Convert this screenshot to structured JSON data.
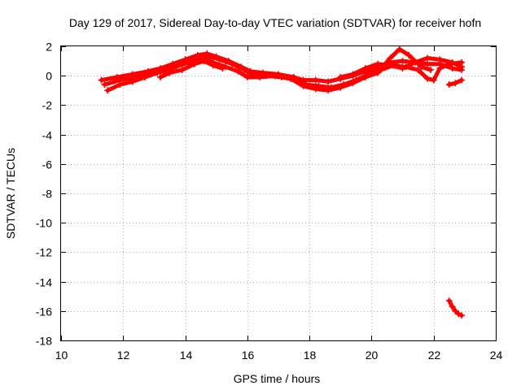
{
  "chart_data": {
    "type": "scatter",
    "title": "Day 129 of 2017, Sidereal Day-to-day VTEC variation (SDTVAR) for receiver hofn",
    "xlabel": "GPS time / hours",
    "ylabel": "SDTVAR / TECUs",
    "xlim": [
      10,
      24
    ],
    "ylim": [
      -18,
      2
    ],
    "xticks": [
      10,
      12,
      14,
      16,
      18,
      20,
      22,
      24
    ],
    "yticks": [
      -18,
      -16,
      -14,
      -12,
      -10,
      -8,
      -6,
      -4,
      -2,
      0,
      2
    ],
    "grid": true,
    "legend": "none",
    "marker": "plus",
    "series": [
      {
        "color": "#ff0000",
        "tracks": [
          [
            [
              11.3,
              -0.3
            ],
            [
              11.8,
              -0.1
            ],
            [
              12.3,
              0.1
            ],
            [
              12.8,
              0.3
            ],
            [
              13.2,
              0.5
            ],
            [
              13.6,
              0.8
            ],
            [
              14.0,
              1.1
            ],
            [
              14.4,
              1.4
            ],
            [
              14.7,
              1.5
            ],
            [
              15.0,
              1.3
            ],
            [
              15.4,
              1.0
            ],
            [
              15.8,
              0.6
            ],
            [
              16.1,
              0.3
            ],
            [
              16.5,
              0.2
            ],
            [
              17.0,
              0.1
            ],
            [
              17.5,
              -0.1
            ],
            [
              17.8,
              -0.3
            ],
            [
              18.2,
              -0.3
            ],
            [
              18.6,
              -0.4
            ],
            [
              19.0,
              -0.2
            ],
            [
              19.4,
              0.0
            ],
            [
              19.8,
              0.3
            ],
            [
              20.2,
              0.6
            ],
            [
              20.6,
              0.9
            ],
            [
              21.0,
              1.0
            ],
            [
              21.4,
              0.9
            ],
            [
              21.8,
              0.8
            ],
            [
              22.2,
              0.8
            ],
            [
              22.6,
              0.5
            ],
            [
              22.9,
              0.4
            ]
          ],
          [
            [
              11.4,
              -0.6
            ],
            [
              11.9,
              -0.3
            ],
            [
              12.4,
              -0.1
            ],
            [
              12.9,
              0.1
            ],
            [
              13.3,
              0.3
            ],
            [
              13.7,
              0.6
            ],
            [
              14.1,
              0.9
            ],
            [
              14.5,
              1.2
            ],
            [
              14.8,
              1.3
            ],
            [
              15.1,
              1.1
            ],
            [
              15.5,
              0.8
            ],
            [
              15.9,
              0.4
            ],
            [
              16.2,
              0.0
            ],
            [
              16.6,
              0.0
            ],
            [
              17.1,
              -0.1
            ],
            [
              17.6,
              -0.3
            ],
            [
              17.9,
              -0.6
            ],
            [
              18.3,
              -0.7
            ],
            [
              18.7,
              -0.8
            ],
            [
              19.1,
              -0.6
            ],
            [
              19.5,
              -0.3
            ],
            [
              19.9,
              0.1
            ],
            [
              20.3,
              0.4
            ],
            [
              20.7,
              0.7
            ],
            [
              21.1,
              0.6
            ],
            [
              21.5,
              0.4
            ],
            [
              21.8,
              -0.2
            ],
            [
              22.0,
              -0.3
            ],
            [
              22.2,
              0.5
            ],
            [
              22.5,
              0.8
            ],
            [
              22.9,
              0.9
            ]
          ],
          [
            [
              11.5,
              -1.0
            ],
            [
              11.9,
              -0.6
            ],
            [
              12.3,
              -0.4
            ],
            [
              12.7,
              -0.1
            ],
            [
              13.1,
              0.2
            ],
            [
              13.5,
              0.5
            ],
            [
              13.9,
              0.8
            ],
            [
              14.3,
              1.1
            ],
            [
              14.6,
              1.2
            ],
            [
              14.9,
              0.9
            ],
            [
              15.3,
              0.6
            ],
            [
              15.7,
              0.3
            ],
            [
              16.0,
              -0.1
            ],
            [
              16.4,
              -0.1
            ],
            [
              16.9,
              0.0
            ],
            [
              17.4,
              -0.2
            ],
            [
              17.8,
              -0.7
            ],
            [
              18.2,
              -0.9
            ],
            [
              18.6,
              -1.0
            ],
            [
              19.0,
              -0.8
            ],
            [
              19.4,
              -0.5
            ],
            [
              19.8,
              -0.1
            ],
            [
              20.2,
              0.2
            ],
            [
              20.6,
              1.2
            ],
            [
              20.9,
              1.8
            ],
            [
              21.2,
              1.4
            ],
            [
              21.6,
              0.6
            ],
            [
              21.9,
              0.4
            ]
          ],
          [
            [
              13.2,
              -0.1
            ],
            [
              13.5,
              0.2
            ],
            [
              13.9,
              0.4
            ],
            [
              14.3,
              0.8
            ],
            [
              14.6,
              1.0
            ],
            [
              14.9,
              0.7
            ],
            [
              15.2,
              0.5
            ]
          ],
          [
            [
              19.0,
              -0.1
            ],
            [
              19.4,
              0.1
            ],
            [
              19.8,
              0.5
            ],
            [
              20.2,
              0.8
            ],
            [
              20.6,
              0.7
            ],
            [
              21.0,
              0.5
            ],
            [
              21.4,
              0.9
            ],
            [
              21.8,
              1.2
            ],
            [
              22.2,
              1.1
            ],
            [
              22.6,
              0.9
            ],
            [
              22.9,
              0.6
            ]
          ],
          [
            [
              22.5,
              -0.6
            ],
            [
              22.7,
              -0.5
            ],
            [
              22.9,
              -0.3
            ]
          ],
          [
            [
              22.5,
              -15.3
            ],
            [
              22.6,
              -15.7
            ],
            [
              22.7,
              -16.0
            ],
            [
              22.8,
              -16.2
            ],
            [
              22.9,
              -16.3
            ]
          ]
        ]
      }
    ]
  }
}
